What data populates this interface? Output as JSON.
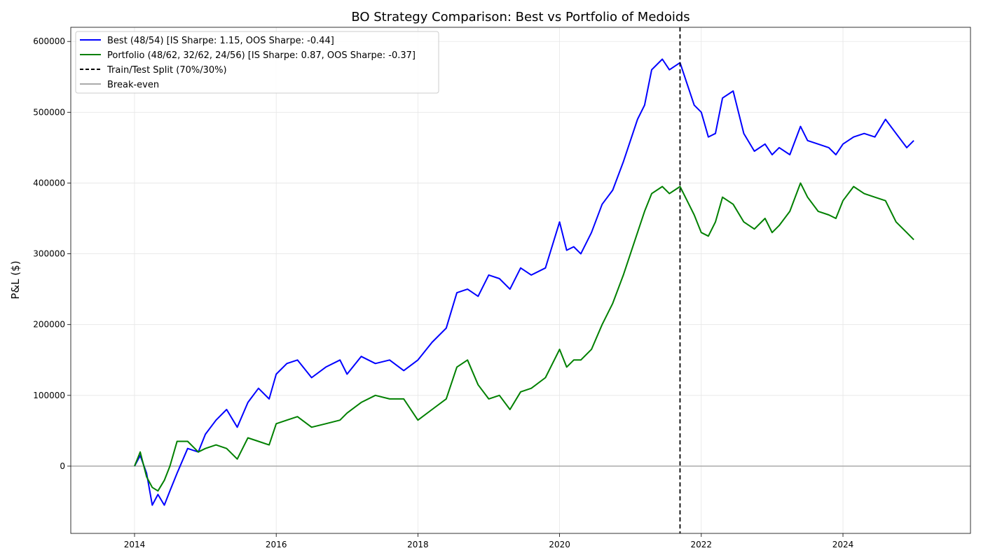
{
  "chart_data": {
    "type": "line",
    "title": "BO Strategy Comparison: Best vs Portfolio of Medoids",
    "xlabel": "",
    "ylabel": "P&L ($)",
    "xlim": [
      2013.1,
      2025.8
    ],
    "ylim": [
      -95000,
      620000
    ],
    "x_ticks": [
      2014,
      2016,
      2018,
      2020,
      2022,
      2024
    ],
    "x_tick_labels": [
      "2014",
      "2016",
      "2018",
      "2020",
      "2022",
      "2024"
    ],
    "y_ticks": [
      0,
      100000,
      200000,
      300000,
      400000,
      500000,
      600000
    ],
    "y_tick_labels": [
      "0",
      "100000",
      "200000",
      "300000",
      "400000",
      "500000",
      "600000"
    ],
    "grid": true,
    "legend_position": "top-left",
    "split_x": 2021.7,
    "series": [
      {
        "name": "Best (48/54) [IS Sharpe: 1.15, OOS Sharpe: -0.44]",
        "color": "#0000ff",
        "x": [
          2014.0,
          2014.08,
          2014.17,
          2014.25,
          2014.33,
          2014.42,
          2014.5,
          2014.6,
          2014.75,
          2014.9,
          2015.0,
          2015.15,
          2015.3,
          2015.45,
          2015.6,
          2015.75,
          2015.9,
          2016.0,
          2016.15,
          2016.3,
          2016.5,
          2016.7,
          2016.9,
          2017.0,
          2017.2,
          2017.4,
          2017.6,
          2017.8,
          2018.0,
          2018.2,
          2018.4,
          2018.55,
          2018.7,
          2018.85,
          2019.0,
          2019.15,
          2019.3,
          2019.45,
          2019.6,
          2019.8,
          2020.0,
          2020.1,
          2020.2,
          2020.3,
          2020.45,
          2020.6,
          2020.75,
          2020.9,
          2021.0,
          2021.1,
          2021.2,
          2021.3,
          2021.45,
          2021.55,
          2021.7,
          2021.8,
          2021.9,
          2022.0,
          2022.1,
          2022.2,
          2022.3,
          2022.45,
          2022.6,
          2022.75,
          2022.9,
          2023.0,
          2023.1,
          2023.25,
          2023.4,
          2023.5,
          2023.65,
          2023.8,
          2023.9,
          2024.0,
          2024.15,
          2024.3,
          2024.45,
          2024.6,
          2024.75,
          2024.9,
          2025.0
        ],
        "values": [
          0,
          15000,
          -10000,
          -55000,
          -40000,
          -55000,
          -35000,
          -10000,
          25000,
          20000,
          45000,
          65000,
          80000,
          55000,
          90000,
          110000,
          95000,
          130000,
          145000,
          150000,
          125000,
          140000,
          150000,
          130000,
          155000,
          145000,
          150000,
          135000,
          150000,
          175000,
          195000,
          245000,
          250000,
          240000,
          270000,
          265000,
          250000,
          280000,
          270000,
          280000,
          345000,
          305000,
          310000,
          300000,
          330000,
          370000,
          390000,
          430000,
          460000,
          490000,
          510000,
          560000,
          575000,
          560000,
          570000,
          540000,
          510000,
          500000,
          465000,
          470000,
          520000,
          530000,
          470000,
          445000,
          455000,
          440000,
          450000,
          440000,
          480000,
          460000,
          455000,
          450000,
          440000,
          455000,
          465000,
          470000,
          465000,
          490000,
          470000,
          450000,
          460000
        ]
      },
      {
        "name": "Portfolio (48/62, 32/62, 24/56) [IS Sharpe: 0.87, OOS Sharpe: -0.37]",
        "color": "#008000",
        "x": [
          2014.0,
          2014.08,
          2014.17,
          2014.25,
          2014.33,
          2014.42,
          2014.5,
          2014.6,
          2014.75,
          2014.9,
          2015.0,
          2015.15,
          2015.3,
          2015.45,
          2015.6,
          2015.75,
          2015.9,
          2016.0,
          2016.15,
          2016.3,
          2016.5,
          2016.7,
          2016.9,
          2017.0,
          2017.2,
          2017.4,
          2017.6,
          2017.8,
          2018.0,
          2018.2,
          2018.4,
          2018.55,
          2018.7,
          2018.85,
          2019.0,
          2019.15,
          2019.3,
          2019.45,
          2019.6,
          2019.8,
          2020.0,
          2020.1,
          2020.2,
          2020.3,
          2020.45,
          2020.6,
          2020.75,
          2020.9,
          2021.0,
          2021.1,
          2021.2,
          2021.3,
          2021.45,
          2021.55,
          2021.7,
          2021.8,
          2021.9,
          2022.0,
          2022.1,
          2022.2,
          2022.3,
          2022.45,
          2022.6,
          2022.75,
          2022.9,
          2023.0,
          2023.1,
          2023.25,
          2023.4,
          2023.5,
          2023.65,
          2023.8,
          2023.9,
          2024.0,
          2024.15,
          2024.3,
          2024.45,
          2024.6,
          2024.75,
          2024.9,
          2025.0
        ],
        "values": [
          0,
          20000,
          -15000,
          -30000,
          -35000,
          -20000,
          0,
          35000,
          35000,
          20000,
          25000,
          30000,
          25000,
          10000,
          40000,
          35000,
          30000,
          60000,
          65000,
          70000,
          55000,
          60000,
          65000,
          75000,
          90000,
          100000,
          95000,
          95000,
          65000,
          80000,
          95000,
          140000,
          150000,
          115000,
          95000,
          100000,
          80000,
          105000,
          110000,
          125000,
          165000,
          140000,
          150000,
          150000,
          165000,
          200000,
          230000,
          270000,
          300000,
          330000,
          360000,
          385000,
          395000,
          385000,
          395000,
          375000,
          355000,
          330000,
          325000,
          345000,
          380000,
          370000,
          345000,
          335000,
          350000,
          330000,
          340000,
          360000,
          400000,
          380000,
          360000,
          355000,
          350000,
          375000,
          395000,
          385000,
          380000,
          375000,
          345000,
          330000,
          320000
        ]
      },
      {
        "name": "Train/Test Split (70%/30%)",
        "color": "#000000"
      },
      {
        "name": "Break-even",
        "color": "#aaaaaa"
      }
    ]
  }
}
